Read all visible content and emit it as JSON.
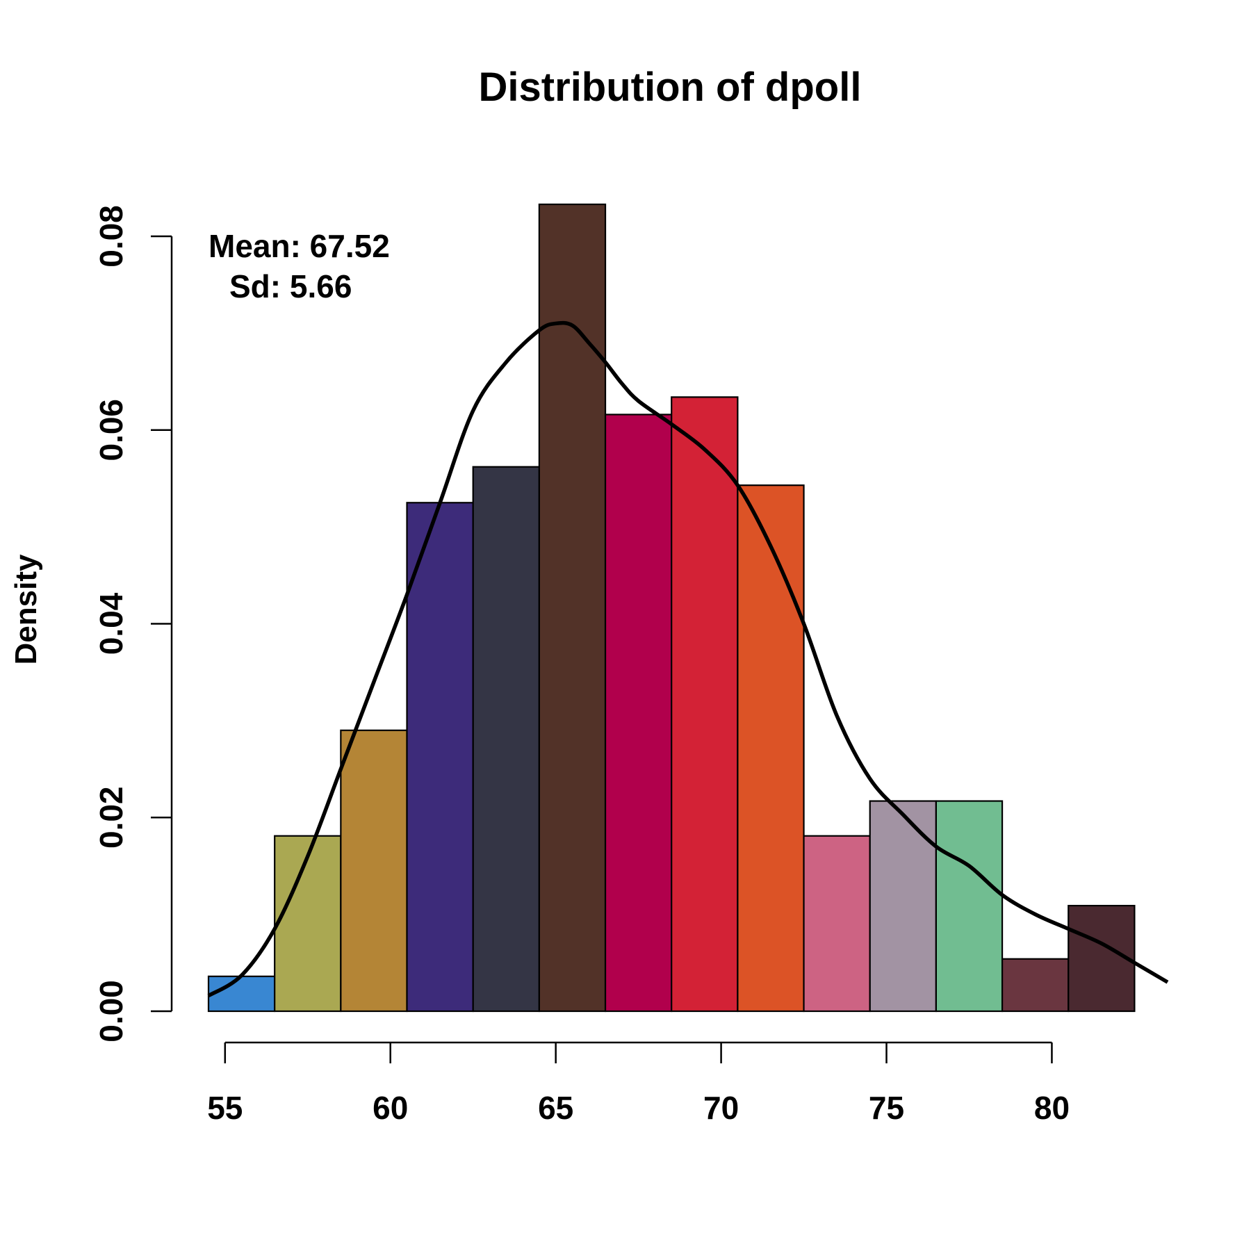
{
  "chart_data": {
    "type": "bar",
    "subtype": "histogram",
    "title": "Distribution of dpoll",
    "xlabel": "",
    "ylabel": "Density",
    "xlim": [
      54.5,
      83.5
    ],
    "ylim": [
      0,
      0.08
    ],
    "x_ticks": [
      55,
      60,
      65,
      70,
      75,
      80
    ],
    "x_tick_labels": [
      "55",
      "60",
      "65",
      "70",
      "75",
      "80"
    ],
    "y_ticks": [
      0,
      0.02,
      0.04,
      0.06,
      0.08
    ],
    "y_tick_labels": [
      "0.00",
      "0.02",
      "0.04",
      "0.06",
      "0.08"
    ],
    "bins": [
      {
        "x0": 54.5,
        "x1": 56.5,
        "density": 0.0036,
        "color": "#3987d2"
      },
      {
        "x0": 56.5,
        "x1": 58.5,
        "density": 0.0181,
        "color": "#aaa852"
      },
      {
        "x0": 58.5,
        "x1": 60.5,
        "density": 0.029,
        "color": "#b48536"
      },
      {
        "x0": 60.5,
        "x1": 62.5,
        "density": 0.0525,
        "color": "#3d2b7a"
      },
      {
        "x0": 62.5,
        "x1": 64.5,
        "density": 0.0562,
        "color": "#343545"
      },
      {
        "x0": 64.5,
        "x1": 66.5,
        "density": 0.0833,
        "color": "#523228"
      },
      {
        "x0": 66.5,
        "x1": 68.5,
        "density": 0.0616,
        "color": "#b1004c"
      },
      {
        "x0": 68.5,
        "x1": 70.5,
        "density": 0.0634,
        "color": "#d32236"
      },
      {
        "x0": 70.5,
        "x1": 72.5,
        "density": 0.0543,
        "color": "#dc5326"
      },
      {
        "x0": 72.5,
        "x1": 74.5,
        "density": 0.0181,
        "color": "#cd6383"
      },
      {
        "x0": 74.5,
        "x1": 76.5,
        "density": 0.0217,
        "color": "#a293a3"
      },
      {
        "x0": 76.5,
        "x1": 78.5,
        "density": 0.0217,
        "color": "#71bd91"
      },
      {
        "x0": 78.5,
        "x1": 80.5,
        "density": 0.0054,
        "color": "#6a3640"
      },
      {
        "x0": 80.5,
        "x1": 82.5,
        "density": 0.0109,
        "color": "#4a2930"
      }
    ],
    "density_curve": {
      "x": [
        54.5,
        55.5,
        56.5,
        57.5,
        58.5,
        59.5,
        60.5,
        61.5,
        62.5,
        63.5,
        64.5,
        65.0,
        65.5,
        66.0,
        66.5,
        67.0,
        67.5,
        68.5,
        69.5,
        70.5,
        71.5,
        72.5,
        73.5,
        74.5,
        75.5,
        76.5,
        77.5,
        78.5,
        79.5,
        80.5,
        81.5,
        82.5,
        83.5
      ],
      "y": [
        0.0016,
        0.0037,
        0.0085,
        0.016,
        0.025,
        0.034,
        0.043,
        0.0525,
        0.062,
        0.067,
        0.0703,
        0.071,
        0.0708,
        0.069,
        0.067,
        0.0648,
        0.063,
        0.0606,
        0.058,
        0.0543,
        0.048,
        0.04,
        0.0305,
        0.024,
        0.0203,
        0.017,
        0.015,
        0.012,
        0.01,
        0.0085,
        0.007,
        0.005,
        0.003
      ]
    },
    "annotations": [
      {
        "label": "Mean: 67.52"
      },
      {
        "label": "Sd: 5.66"
      }
    ],
    "grid": false,
    "legend": "none"
  }
}
